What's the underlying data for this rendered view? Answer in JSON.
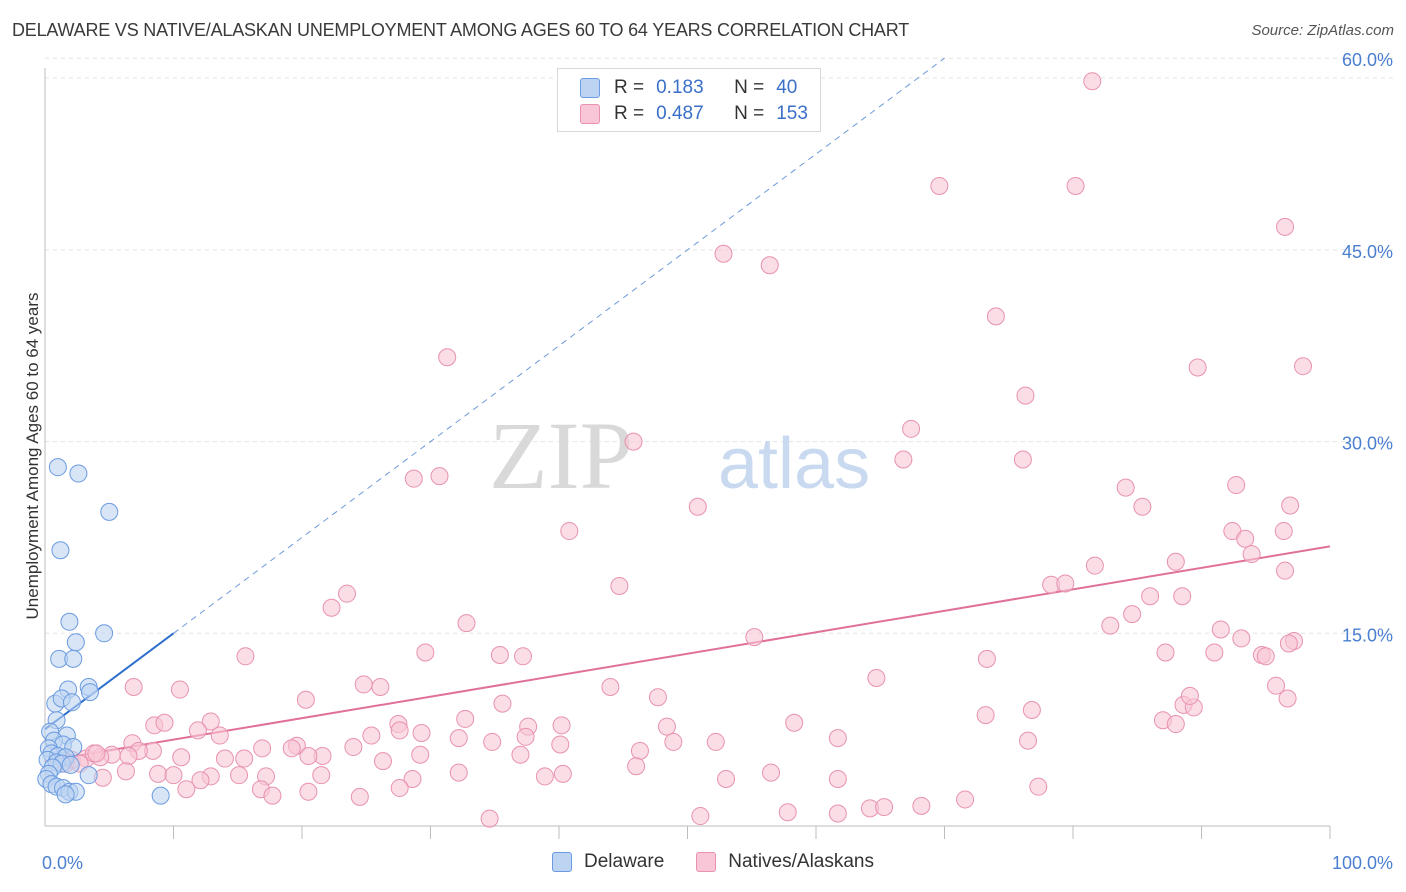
{
  "title": "DELAWARE VS NATIVE/ALASKAN UNEMPLOYMENT AMONG AGES 60 TO 64 YEARS CORRELATION CHART",
  "source": "Source: ZipAtlas.com",
  "watermark": {
    "zip": "ZIP",
    "atlas": "atlas"
  },
  "colors": {
    "delaware_fill": "#bcd3f2",
    "delaware_stroke": "#6b9be0",
    "delaware_line": "#2e6fcc",
    "natives_fill": "#f8c6d6",
    "natives_stroke": "#e892b0",
    "natives_line": "#e0709a",
    "tick_text": "#4a7fd0",
    "grid": "#e4e4e4"
  },
  "legend": {
    "rows": [
      {
        "r_label": "R =",
        "r_value": "0.183",
        "n_label": "N =",
        "n_value": "40"
      },
      {
        "r_label": "R =",
        "r_value": "0.487",
        "n_label": "N =",
        "n_value": "153"
      }
    ]
  },
  "bottom_legend": {
    "delaware": "Delaware",
    "natives": "Natives/Alaskans"
  },
  "chart_data": {
    "type": "scatter",
    "title": "DELAWARE VS NATIVE/ALASKAN UNEMPLOYMENT AMONG AGES 60 TO 64 YEARS CORRELATION CHART",
    "xlabel": "",
    "ylabel": "Unemployment Among Ages 60 to 64 years",
    "xlim": [
      0,
      100
    ],
    "ylim": [
      0,
      62
    ],
    "x_tick_labels": [
      "0.0%",
      "100.0%"
    ],
    "y_ticks": [
      15,
      30,
      45,
      60
    ],
    "y_tick_labels": [
      "15.0%",
      "30.0%",
      "45.0%",
      "60.0%"
    ],
    "legend_placement": "top-center",
    "grid": true,
    "series": [
      {
        "name": "Delaware",
        "points": [
          [
            1.0,
            28.0
          ],
          [
            2.6,
            27.5
          ],
          [
            5.0,
            24.5
          ],
          [
            1.2,
            21.5
          ],
          [
            1.9,
            15.9
          ],
          [
            4.6,
            15.0
          ],
          [
            2.4,
            14.3
          ],
          [
            1.1,
            13.0
          ],
          [
            2.2,
            13.0
          ],
          [
            3.4,
            10.8
          ],
          [
            1.8,
            10.6
          ],
          [
            3.5,
            10.4
          ],
          [
            0.8,
            9.5
          ],
          [
            1.3,
            9.9
          ],
          [
            2.1,
            9.6
          ],
          [
            0.9,
            8.2
          ],
          [
            0.4,
            7.3
          ],
          [
            1.7,
            7.0
          ],
          [
            0.7,
            6.6
          ],
          [
            1.4,
            6.3
          ],
          [
            2.2,
            6.1
          ],
          [
            0.3,
            6.0
          ],
          [
            0.5,
            5.6
          ],
          [
            1.0,
            5.4
          ],
          [
            1.6,
            5.3
          ],
          [
            0.2,
            5.1
          ],
          [
            0.9,
            4.9
          ],
          [
            1.3,
            4.8
          ],
          [
            2.0,
            4.7
          ],
          [
            0.6,
            4.5
          ],
          [
            0.3,
            4.0
          ],
          [
            3.4,
            3.9
          ],
          [
            0.1,
            3.6
          ],
          [
            0.5,
            3.2
          ],
          [
            0.9,
            3.0
          ],
          [
            1.4,
            2.9
          ],
          [
            1.9,
            2.6
          ],
          [
            2.4,
            2.6
          ],
          [
            1.6,
            2.4
          ],
          [
            9.0,
            2.3
          ]
        ],
        "trend": {
          "x0": 0,
          "y0": 7.5,
          "x1": 10,
          "y1": 15.0,
          "dashed_to_x": 70
        }
      },
      {
        "name": "Natives/Alaskans",
        "points": [
          [
            81.5,
            58.2
          ],
          [
            69.6,
            50.0
          ],
          [
            80.2,
            50.0
          ],
          [
            96.5,
            46.8
          ],
          [
            52.8,
            44.7
          ],
          [
            56.4,
            43.8
          ],
          [
            74.0,
            39.8
          ],
          [
            31.3,
            36.6
          ],
          [
            89.7,
            35.8
          ],
          [
            97.9,
            35.9
          ],
          [
            76.3,
            33.6
          ],
          [
            67.4,
            31.0
          ],
          [
            45.8,
            30.0
          ],
          [
            66.8,
            28.6
          ],
          [
            76.1,
            28.6
          ],
          [
            30.7,
            27.3
          ],
          [
            28.7,
            27.1
          ],
          [
            84.1,
            26.4
          ],
          [
            92.7,
            26.6
          ],
          [
            50.8,
            24.9
          ],
          [
            85.4,
            24.9
          ],
          [
            96.9,
            25.0
          ],
          [
            40.8,
            23.0
          ],
          [
            92.4,
            23.0
          ],
          [
            93.4,
            22.4
          ],
          [
            96.4,
            23.0
          ],
          [
            93.9,
            21.2
          ],
          [
            81.7,
            20.3
          ],
          [
            88.0,
            20.6
          ],
          [
            96.5,
            19.9
          ],
          [
            78.3,
            18.8
          ],
          [
            79.4,
            18.9
          ],
          [
            44.7,
            18.7
          ],
          [
            23.5,
            18.1
          ],
          [
            86.0,
            17.9
          ],
          [
            88.5,
            17.9
          ],
          [
            22.3,
            17.0
          ],
          [
            84.6,
            16.5
          ],
          [
            32.8,
            15.8
          ],
          [
            82.9,
            15.6
          ],
          [
            91.5,
            15.3
          ],
          [
            93.1,
            14.6
          ],
          [
            55.2,
            14.7
          ],
          [
            97.2,
            14.4
          ],
          [
            96.8,
            14.2
          ],
          [
            29.6,
            13.5
          ],
          [
            35.4,
            13.3
          ],
          [
            37.2,
            13.2
          ],
          [
            15.6,
            13.2
          ],
          [
            87.2,
            13.5
          ],
          [
            91.0,
            13.5
          ],
          [
            94.7,
            13.3
          ],
          [
            95.0,
            13.2
          ],
          [
            73.3,
            13.0
          ],
          [
            64.7,
            11.5
          ],
          [
            24.8,
            11.0
          ],
          [
            26.1,
            10.8
          ],
          [
            10.5,
            10.6
          ],
          [
            6.9,
            10.8
          ],
          [
            44.0,
            10.8
          ],
          [
            95.8,
            10.9
          ],
          [
            20.3,
            9.8
          ],
          [
            35.6,
            9.5
          ],
          [
            47.7,
            10.0
          ],
          [
            88.6,
            9.4
          ],
          [
            89.4,
            9.2
          ],
          [
            89.1,
            10.1
          ],
          [
            96.7,
            9.9
          ],
          [
            76.8,
            9.0
          ],
          [
            73.2,
            8.6
          ],
          [
            8.5,
            7.8
          ],
          [
            9.3,
            8.0
          ],
          [
            12.9,
            8.1
          ],
          [
            32.7,
            8.3
          ],
          [
            27.5,
            7.9
          ],
          [
            37.6,
            7.7
          ],
          [
            40.2,
            7.8
          ],
          [
            48.4,
            7.7
          ],
          [
            58.3,
            8.0
          ],
          [
            87.0,
            8.2
          ],
          [
            88.0,
            7.9
          ],
          [
            11.9,
            7.4
          ],
          [
            13.6,
            7.0
          ],
          [
            25.4,
            7.0
          ],
          [
            27.6,
            7.4
          ],
          [
            29.3,
            7.2
          ],
          [
            32.2,
            6.8
          ],
          [
            34.8,
            6.5
          ],
          [
            37.4,
            6.9
          ],
          [
            40.1,
            6.3
          ],
          [
            48.9,
            6.5
          ],
          [
            52.2,
            6.5
          ],
          [
            61.7,
            6.8
          ],
          [
            76.5,
            6.6
          ],
          [
            6.8,
            6.4
          ],
          [
            8.4,
            5.8
          ],
          [
            5.2,
            5.5
          ],
          [
            4.3,
            5.3
          ],
          [
            7.3,
            5.8
          ],
          [
            10.6,
            5.3
          ],
          [
            15.5,
            5.2
          ],
          [
            16.9,
            6.0
          ],
          [
            19.6,
            6.2
          ],
          [
            19.2,
            6.0
          ],
          [
            21.6,
            5.4
          ],
          [
            24.0,
            6.1
          ],
          [
            26.3,
            5.0
          ],
          [
            29.2,
            5.5
          ],
          [
            37.0,
            5.5
          ],
          [
            46.3,
            5.8
          ],
          [
            2.1,
            5.1
          ],
          [
            3.2,
            5.2
          ],
          [
            3.8,
            5.6
          ],
          [
            1.6,
            4.8
          ],
          [
            2.7,
            4.8
          ],
          [
            4.0,
            5.6
          ],
          [
            6.5,
            5.4
          ],
          [
            14.0,
            5.2
          ],
          [
            20.5,
            5.4
          ],
          [
            12.9,
            3.8
          ],
          [
            6.3,
            4.2
          ],
          [
            8.8,
            4.0
          ],
          [
            10.0,
            3.9
          ],
          [
            12.1,
            3.5
          ],
          [
            15.1,
            3.9
          ],
          [
            17.2,
            3.8
          ],
          [
            21.5,
            3.9
          ],
          [
            28.6,
            3.6
          ],
          [
            32.2,
            4.1
          ],
          [
            38.9,
            3.8
          ],
          [
            40.3,
            4.0
          ],
          [
            46.0,
            4.6
          ],
          [
            56.5,
            4.1
          ],
          [
            61.7,
            3.6
          ],
          [
            4.5,
            3.7
          ],
          [
            11.0,
            2.8
          ],
          [
            16.8,
            2.8
          ],
          [
            17.7,
            2.3
          ],
          [
            24.5,
            2.2
          ],
          [
            20.5,
            2.6
          ],
          [
            27.6,
            2.9
          ],
          [
            53.0,
            3.6
          ],
          [
            77.3,
            3.0
          ],
          [
            68.2,
            1.5
          ],
          [
            71.6,
            2.0
          ],
          [
            57.8,
            1.0
          ],
          [
            61.7,
            0.9
          ],
          [
            64.2,
            1.3
          ],
          [
            65.3,
            1.4
          ],
          [
            51.0,
            0.7
          ],
          [
            34.6,
            0.5
          ]
        ],
        "trend": {
          "x0": 0,
          "y0": 5.0,
          "x1": 100,
          "y1": 21.8
        }
      }
    ]
  }
}
